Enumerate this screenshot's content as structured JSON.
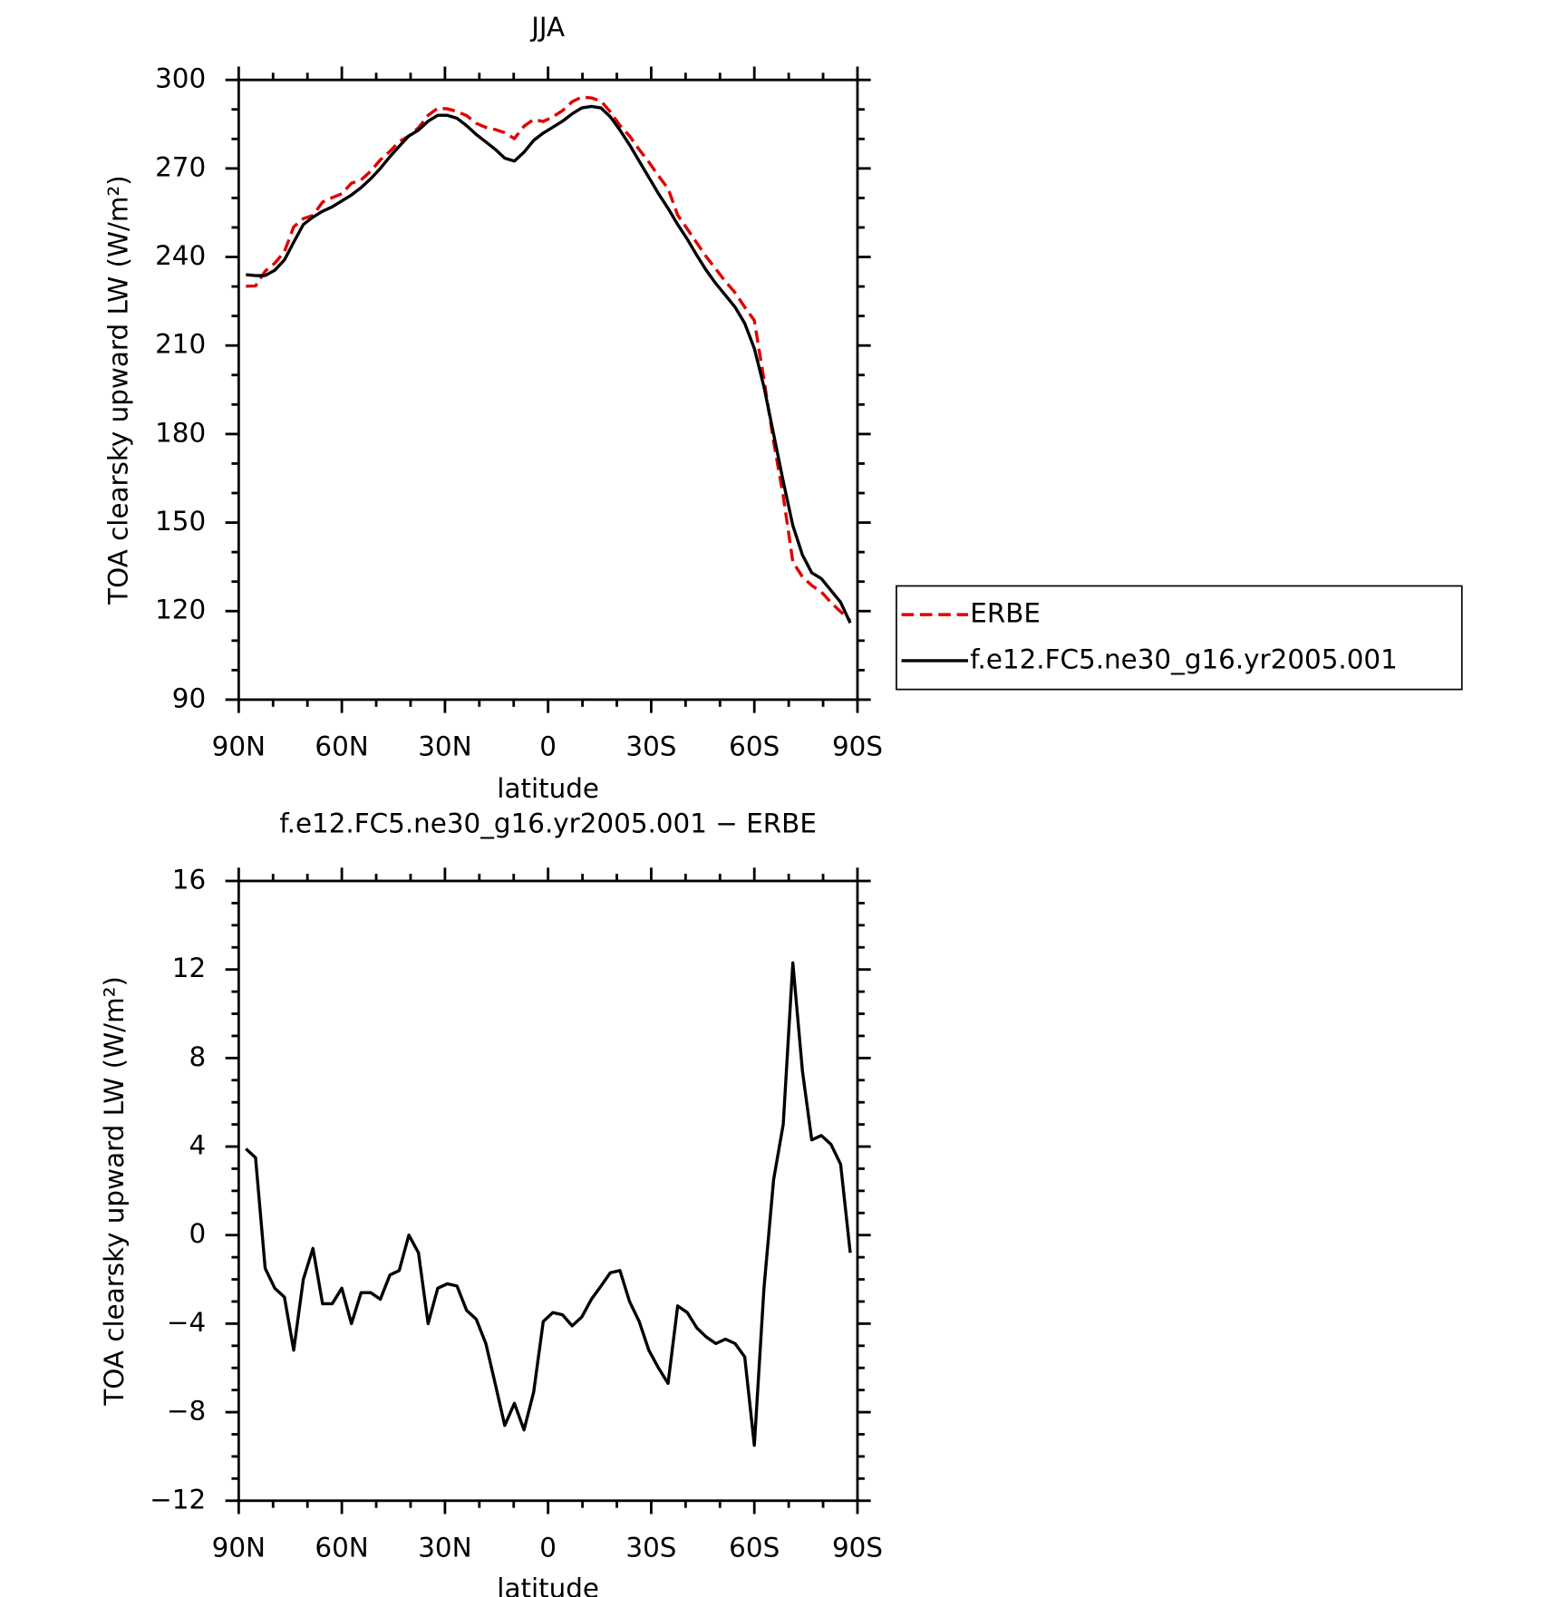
{
  "chart_data": [
    {
      "type": "line",
      "title": "JJA",
      "xlabel": "latitude",
      "ylabel": "TOA clearsky upward LW (W/m²)",
      "x": [
        87.9,
        85.1,
        82.3,
        79.5,
        76.7,
        74.0,
        71.2,
        68.4,
        65.6,
        62.8,
        60.0,
        57.2,
        54.4,
        51.6,
        48.8,
        46.0,
        43.3,
        40.5,
        37.7,
        34.9,
        32.1,
        29.3,
        26.5,
        23.7,
        20.9,
        18.1,
        15.4,
        12.6,
        9.8,
        7.0,
        4.2,
        1.4,
        -1.4,
        -4.2,
        -7.0,
        -9.8,
        -12.6,
        -15.4,
        -18.1,
        -20.9,
        -23.7,
        -26.5,
        -29.3,
        -32.1,
        -34.9,
        -37.7,
        -40.5,
        -43.3,
        -46.0,
        -48.8,
        -51.6,
        -54.4,
        -57.2,
        -60.0,
        -62.8,
        -65.6,
        -68.4,
        -71.2,
        -74.0,
        -76.7,
        -79.5,
        -82.3,
        -85.1,
        -87.9
      ],
      "series": [
        {
          "name": "ERBE",
          "color": "#e00000",
          "dashed": true,
          "values": [
            230.1,
            230.2,
            235.2,
            237.9,
            241.8,
            250.2,
            253.0,
            254.1,
            258.6,
            260.1,
            261.4,
            265.0,
            266.1,
            269.1,
            272.9,
            275.8,
            279.1,
            281.0,
            283.8,
            288.0,
            290.4,
            290.2,
            289.3,
            287.9,
            285.3,
            283.9,
            283.2,
            282.1,
            280.1,
            284.3,
            286.6,
            285.9,
            287.5,
            289.6,
            292.6,
            294.2,
            293.9,
            292.8,
            289.2,
            284.6,
            281.0,
            276.4,
            272.2,
            267.5,
            263.2,
            254.2,
            249.5,
            244.7,
            240.1,
            235.9,
            231.7,
            227.9,
            223.0,
            218.5,
            198.4,
            177.5,
            159.0,
            136.7,
            131.6,
            128.7,
            126.5,
            122.9,
            119.8,
            116.8
          ]
        },
        {
          "name": "f.e12.FC5.ne30_g16.yr2005.001",
          "color": "#000000",
          "dashed": false,
          "values": [
            234.0,
            233.7,
            233.7,
            235.5,
            239.0,
            245.0,
            251.0,
            253.5,
            255.5,
            257.0,
            259.0,
            261.0,
            263.5,
            266.5,
            270.0,
            274.0,
            277.5,
            281.0,
            283.0,
            286.0,
            288.0,
            288.0,
            287.0,
            284.5,
            281.5,
            279.0,
            276.5,
            273.5,
            272.5,
            275.5,
            279.5,
            282.0,
            284.0,
            286.0,
            288.5,
            290.5,
            291.0,
            290.5,
            287.5,
            283.0,
            278.0,
            272.5,
            267.0,
            261.5,
            256.5,
            251.0,
            246.0,
            240.5,
            235.5,
            231.0,
            227.0,
            223.0,
            217.5,
            209.0,
            196.0,
            180.0,
            164.0,
            149.0,
            139.0,
            133.0,
            131.0,
            127.0,
            123.0,
            116.0
          ]
        }
      ],
      "legend": "right",
      "xlim": [
        90,
        -90
      ],
      "xticks": [
        {
          "value": 90,
          "label": "90N"
        },
        {
          "value": 60,
          "label": "60N"
        },
        {
          "value": 30,
          "label": "30N"
        },
        0,
        {
          "value": -30,
          "label": "30S"
        },
        {
          "value": -60,
          "label": "60S"
        },
        {
          "value": -90,
          "label": "90S"
        }
      ],
      "xminorticks": [
        80,
        70,
        50,
        40,
        20,
        10,
        -10,
        -20,
        -40,
        -50,
        -70,
        -80
      ],
      "ylim": [
        90,
        300
      ],
      "yticks": [
        90,
        120,
        150,
        180,
        210,
        240,
        270,
        300
      ],
      "yminorticks": [
        100,
        110,
        130,
        140,
        160,
        170,
        190,
        200,
        220,
        230,
        250,
        260,
        280,
        290
      ]
    },
    {
      "type": "line",
      "title": "f.e12.FC5.ne30_g16.yr2005.001 − ERBE",
      "xlabel": "latitude",
      "ylabel": "TOA clearsky upward LW (W/m²)",
      "x": [
        87.9,
        85.1,
        82.3,
        79.5,
        76.7,
        74.0,
        71.2,
        68.4,
        65.6,
        62.8,
        60.0,
        57.2,
        54.4,
        51.6,
        48.8,
        46.0,
        43.3,
        40.5,
        37.7,
        34.9,
        32.1,
        29.3,
        26.5,
        23.7,
        20.9,
        18.1,
        15.4,
        12.6,
        9.8,
        7.0,
        4.2,
        1.4,
        -1.4,
        -4.2,
        -7.0,
        -9.8,
        -12.6,
        -15.4,
        -18.1,
        -20.9,
        -23.7,
        -26.5,
        -29.3,
        -32.1,
        -34.9,
        -37.7,
        -40.5,
        -43.3,
        -46.0,
        -48.8,
        -51.6,
        -54.4,
        -57.2,
        -60.0,
        -62.8,
        -65.6,
        -68.4,
        -71.2,
        -74.0,
        -76.7,
        -79.5,
        -82.3,
        -85.1,
        -87.9
      ],
      "values": [
        3.9,
        3.5,
        -1.5,
        -2.4,
        -2.8,
        -5.2,
        -2.0,
        -0.6,
        -3.1,
        -3.1,
        -2.4,
        -4.0,
        -2.6,
        -2.6,
        -2.9,
        -1.8,
        -1.6,
        0.0,
        -0.8,
        -4.0,
        -2.4,
        -2.2,
        -2.3,
        -3.4,
        -3.8,
        -4.9,
        -6.7,
        -8.6,
        -7.6,
        -8.8,
        -7.1,
        -3.9,
        -3.5,
        -3.6,
        -4.1,
        -3.7,
        -2.9,
        -2.3,
        -1.7,
        -1.6,
        -3.0,
        -3.9,
        -5.2,
        -6.0,
        -6.7,
        -3.2,
        -3.5,
        -4.2,
        -4.6,
        -4.9,
        -4.7,
        -4.9,
        -5.5,
        -9.5,
        -2.4,
        2.5,
        5.0,
        12.3,
        7.4,
        4.3,
        4.5,
        4.1,
        3.2,
        -0.8
      ],
      "color": "#000000",
      "xlim": [
        90,
        -90
      ],
      "xticks": [
        {
          "value": 90,
          "label": "90N"
        },
        {
          "value": 60,
          "label": "60N"
        },
        {
          "value": 30,
          "label": "30N"
        },
        0,
        {
          "value": -30,
          "label": "30S"
        },
        {
          "value": -60,
          "label": "60S"
        },
        {
          "value": -90,
          "label": "90S"
        }
      ],
      "xminorticks": [
        80,
        70,
        50,
        40,
        20,
        10,
        -10,
        -20,
        -40,
        -50,
        -70,
        -80
      ],
      "ylim": [
        -12,
        16
      ],
      "yticks": [
        {
          "value": -12,
          "label": "−12"
        },
        {
          "value": -8,
          "label": "−8"
        },
        {
          "value": -4,
          "label": "−4"
        },
        0,
        4,
        8,
        12,
        16
      ],
      "yminorticks": [
        -11,
        -10,
        -9,
        -7,
        -6,
        -5,
        -3,
        -2,
        -1,
        1,
        2,
        3,
        5,
        6,
        7,
        9,
        10,
        11,
        13,
        14,
        15
      ]
    }
  ]
}
